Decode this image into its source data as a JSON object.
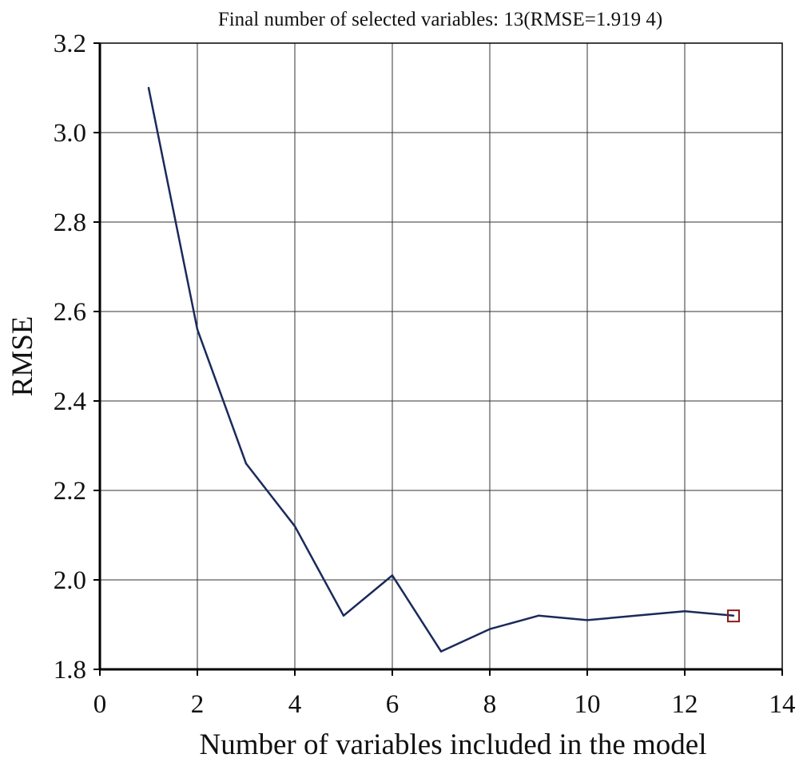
{
  "chart_data": {
    "type": "line",
    "title": "Final number of selected variables: 13(RMSE=1.919 4)",
    "xlabel": "Number of variables included in the model",
    "ylabel": "RMSE",
    "xlim": [
      0,
      14
    ],
    "ylim": [
      1.8,
      3.2
    ],
    "xticks": [
      0,
      2,
      4,
      6,
      8,
      10,
      12,
      14
    ],
    "xtick_labels": [
      "0",
      "2",
      "4",
      "6",
      "8",
      "10",
      "12",
      "14"
    ],
    "yticks": [
      1.8,
      2.0,
      2.2,
      2.4,
      2.6,
      2.8,
      3.0,
      3.2
    ],
    "ytick_labels": [
      "1.8",
      "2.0",
      "2.2",
      "2.4",
      "2.6",
      "2.8",
      "3.0",
      "3.2"
    ],
    "grid": true,
    "series": [
      {
        "color": "#1a2a5a",
        "x": [
          1,
          2,
          3,
          4,
          5,
          6,
          7,
          8,
          9,
          10,
          11,
          12,
          13
        ],
        "y": [
          3.1,
          2.56,
          2.26,
          2.12,
          1.92,
          2.01,
          1.84,
          1.89,
          1.92,
          1.91,
          1.92,
          1.93,
          1.92
        ]
      }
    ],
    "highlight_point": {
      "x": 13,
      "y": 1.9194,
      "color": "#8b1a1a"
    }
  }
}
